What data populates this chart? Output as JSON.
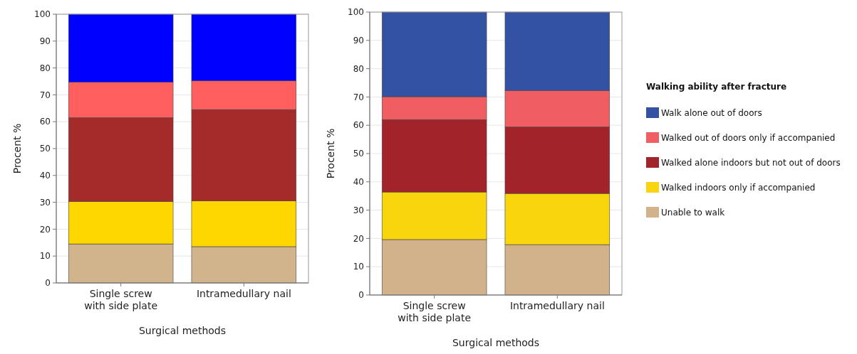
{
  "chart_data": [
    {
      "type": "bar",
      "stacked": true,
      "categories": [
        "Single screw with side plate",
        "Intramedullary nail"
      ],
      "xlabel": "Surgical methods",
      "ylabel": "Procent %",
      "ylim": [
        0,
        100
      ],
      "yticks": [
        0,
        10,
        20,
        30,
        40,
        50,
        60,
        70,
        80,
        90,
        100
      ],
      "grid": "y",
      "series": [
        {
          "color": "#d2b48c",
          "values": [
            14.5,
            13.5
          ]
        },
        {
          "color": "#ffd700",
          "values": [
            15.8,
            17
          ]
        },
        {
          "color": "#a52a2a",
          "values": [
            31.2,
            34
          ]
        },
        {
          "color": "#ff5f5f",
          "values": [
            13.2,
            10.7
          ]
        },
        {
          "color": "#0000ff",
          "values": [
            25.3,
            24.8
          ]
        }
      ]
    },
    {
      "type": "bar",
      "stacked": true,
      "categories": [
        "Single screw with side plate",
        "Intramedullary nail"
      ],
      "xlabel": "Surgical methods",
      "ylabel": "Procent %",
      "ylim": [
        0,
        100
      ],
      "yticks": [
        0,
        10,
        20,
        30,
        40,
        50,
        60,
        70,
        80,
        90,
        100
      ],
      "grid": "y",
      "legend": "right",
      "legend_title": "Walking ability after fracture",
      "series": [
        {
          "name": "Unable to walk",
          "color": "#d2b28b",
          "values": [
            19.6,
            17.8
          ]
        },
        {
          "name": "Walked indoors only if accompanied",
          "color": "#f9d50e",
          "values": [
            16.8,
            18.1
          ]
        },
        {
          "name": "Walked alone indoors but not out of doors",
          "color": "#a2242a",
          "values": [
            25.6,
            23.5
          ]
        },
        {
          "name": "Walked out of doors only if accompanied",
          "color": "#f05d62",
          "values": [
            8.1,
            12.9
          ]
        },
        {
          "name": "Walk alone out of doors",
          "color": "#3452a4",
          "values": [
            29.9,
            27.7
          ]
        }
      ]
    }
  ]
}
